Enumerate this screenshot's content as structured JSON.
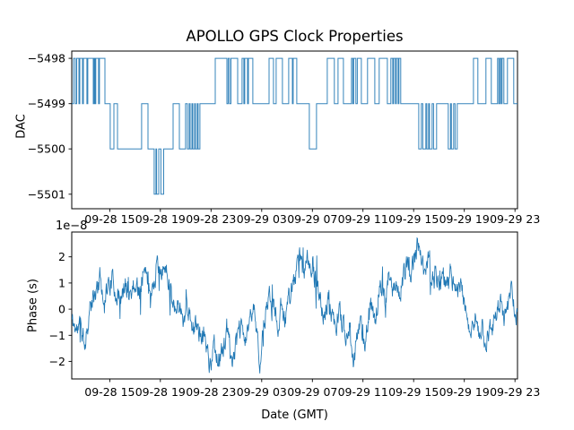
{
  "figure": {
    "background_color": "#ffffff",
    "line_color": "#1f77b4",
    "text_color": "#000000"
  },
  "chart_data": [
    {
      "type": "line",
      "subplot": "top",
      "title": "APOLLO GPS Clock Properties",
      "ylabel": "DAC",
      "drawstyle": "steps-post",
      "grid": false,
      "legend": "none",
      "yticks": {
        "values": [
          -5498,
          -5499,
          -5500,
          -5501
        ],
        "labels": [
          "−5498",
          "−5499",
          "−5500",
          "−5501"
        ]
      },
      "ylim": [
        -5501.32,
        -5497.84
      ],
      "xlim_hours": [
        0,
        35.2
      ],
      "xticks": {
        "hours": [
          3,
          7,
          11,
          15,
          19,
          23,
          27,
          31,
          35
        ],
        "labels": [
          "09-28 15",
          "09-28 19",
          "09-28 23",
          "09-29 03",
          "09-29 07",
          "09-29 11",
          "09-29 15",
          "09-29 19",
          "09-29 23"
        ]
      },
      "steps": [
        [
          0,
          -5499
        ],
        [
          0.14,
          -5498
        ],
        [
          0.28,
          -5499
        ],
        [
          0.39,
          -5498
        ],
        [
          0.57,
          -5499
        ],
        [
          0.64,
          -5498
        ],
        [
          0.85,
          -5499
        ],
        [
          0.92,
          -5498
        ],
        [
          1.2,
          -5499
        ],
        [
          1.27,
          -5498
        ],
        [
          1.7,
          -5499
        ],
        [
          1.77,
          -5498
        ],
        [
          1.84,
          -5499
        ],
        [
          1.9,
          -5498
        ],
        [
          2.12,
          -5499
        ],
        [
          2.19,
          -5498
        ],
        [
          2.62,
          -5499
        ],
        [
          3.04,
          -5500
        ],
        [
          3.33,
          -5499
        ],
        [
          3.61,
          -5500
        ],
        [
          5.52,
          -5499
        ],
        [
          6.02,
          -5500
        ],
        [
          6.51,
          -5501
        ],
        [
          6.65,
          -5500
        ],
        [
          6.7,
          -5501
        ],
        [
          6.87,
          -5500
        ],
        [
          7.04,
          -5501
        ],
        [
          7.26,
          -5500
        ],
        [
          8.0,
          -5499
        ],
        [
          8.5,
          -5500
        ],
        [
          8.99,
          -5499
        ],
        [
          9.13,
          -5500
        ],
        [
          9.27,
          -5499
        ],
        [
          9.35,
          -5500
        ],
        [
          9.49,
          -5499
        ],
        [
          9.56,
          -5500
        ],
        [
          9.7,
          -5499
        ],
        [
          9.77,
          -5500
        ],
        [
          9.91,
          -5499
        ],
        [
          9.98,
          -5500
        ],
        [
          10.12,
          -5499
        ],
        [
          11.33,
          -5498
        ],
        [
          12.25,
          -5499
        ],
        [
          12.35,
          -5498
        ],
        [
          12.46,
          -5499
        ],
        [
          12.57,
          -5498
        ],
        [
          13.1,
          -5499
        ],
        [
          13.45,
          -5498
        ],
        [
          13.59,
          -5499
        ],
        [
          13.66,
          -5498
        ],
        [
          13.88,
          -5499
        ],
        [
          13.95,
          -5498
        ],
        [
          14.3,
          -5499
        ],
        [
          15.58,
          -5498
        ],
        [
          15.93,
          -5499
        ],
        [
          16.14,
          -5498
        ],
        [
          16.64,
          -5499
        ],
        [
          17.13,
          -5498
        ],
        [
          17.42,
          -5499
        ],
        [
          17.49,
          -5498
        ],
        [
          17.77,
          -5499
        ],
        [
          18.76,
          -5500
        ],
        [
          19.33,
          -5499
        ],
        [
          20.18,
          -5498
        ],
        [
          20.74,
          -5499
        ],
        [
          21.03,
          -5498
        ],
        [
          21.45,
          -5499
        ],
        [
          22.09,
          -5498
        ],
        [
          22.19,
          -5499
        ],
        [
          22.27,
          -5498
        ],
        [
          22.44,
          -5499
        ],
        [
          22.55,
          -5498
        ],
        [
          22.87,
          -5499
        ],
        [
          23.36,
          -5498
        ],
        [
          23.93,
          -5499
        ],
        [
          24.28,
          -5498
        ],
        [
          24.92,
          -5499
        ],
        [
          25.2,
          -5498
        ],
        [
          25.35,
          -5499
        ],
        [
          25.42,
          -5498
        ],
        [
          25.56,
          -5499
        ],
        [
          25.63,
          -5498
        ],
        [
          25.77,
          -5499
        ],
        [
          25.84,
          -5498
        ],
        [
          25.98,
          -5499
        ],
        [
          27.4,
          -5500
        ],
        [
          27.61,
          -5499
        ],
        [
          27.72,
          -5500
        ],
        [
          27.96,
          -5499
        ],
        [
          28.04,
          -5500
        ],
        [
          28.18,
          -5499
        ],
        [
          28.25,
          -5500
        ],
        [
          28.46,
          -5499
        ],
        [
          28.57,
          -5500
        ],
        [
          28.81,
          -5499
        ],
        [
          29.73,
          -5500
        ],
        [
          29.91,
          -5499
        ],
        [
          29.98,
          -5500
        ],
        [
          30.16,
          -5499
        ],
        [
          30.27,
          -5500
        ],
        [
          30.44,
          -5499
        ],
        [
          31.72,
          -5498
        ],
        [
          32.07,
          -5499
        ],
        [
          32.71,
          -5498
        ],
        [
          33.13,
          -5499
        ],
        [
          33.63,
          -5498
        ],
        [
          33.73,
          -5499
        ],
        [
          33.81,
          -5498
        ],
        [
          33.91,
          -5499
        ],
        [
          33.98,
          -5498
        ],
        [
          34.12,
          -5499
        ],
        [
          34.41,
          -5498
        ],
        [
          34.9,
          -5499
        ]
      ]
    },
    {
      "type": "line",
      "subplot": "bottom",
      "ylabel": "Phase (s)",
      "xlabel": "Date (GMT)",
      "offset_text": "1e−8",
      "value_scale": "1e-8",
      "grid": false,
      "legend": "none",
      "yticks": {
        "values": [
          2,
          1,
          0,
          -1,
          -2
        ],
        "labels": [
          "2",
          "1",
          "0",
          "−1",
          "−2"
        ]
      },
      "ylim": [
        -2.67,
        2.95
      ],
      "xlim_hours": [
        0,
        35.2
      ],
      "xticks": {
        "hours": [
          3,
          7,
          11,
          15,
          19,
          23,
          27,
          31,
          35
        ],
        "labels": [
          "09-28 15",
          "09-28 19",
          "09-28 23",
          "09-29 03",
          "09-29 07",
          "09-29 11",
          "09-29 15",
          "09-29 19",
          "09-29 23"
        ]
      },
      "wander_anchors": [
        [
          0,
          -0.4
        ],
        [
          0.35,
          -0.8
        ],
        [
          0.7,
          -0.6
        ],
        [
          1.06,
          -1.3
        ],
        [
          1.42,
          0.0
        ],
        [
          1.77,
          0.4
        ],
        [
          2.12,
          0.9
        ],
        [
          2.27,
          1.3
        ],
        [
          2.48,
          0.4
        ],
        [
          2.83,
          0.9
        ],
        [
          3.19,
          1.1
        ],
        [
          3.54,
          0.6
        ],
        [
          3.89,
          0.3
        ],
        [
          4.25,
          0.9
        ],
        [
          4.6,
          0.6
        ],
        [
          4.96,
          1.0
        ],
        [
          5.31,
          0.7
        ],
        [
          5.66,
          1.5
        ],
        [
          6.02,
          1.0
        ],
        [
          6.37,
          0.7
        ],
        [
          6.73,
          1.7
        ],
        [
          7.08,
          1.1
        ],
        [
          7.43,
          1.8
        ],
        [
          7.65,
          1.0
        ],
        [
          7.93,
          0.5
        ],
        [
          8.21,
          0.0
        ],
        [
          8.5,
          0.3
        ],
        [
          8.78,
          -0.5
        ],
        [
          9.06,
          0.2
        ],
        [
          9.35,
          -0.3
        ],
        [
          9.63,
          -0.8
        ],
        [
          9.91,
          -0.5
        ],
        [
          10.19,
          -1.3
        ],
        [
          10.48,
          -0.9
        ],
        [
          10.76,
          -1.6
        ],
        [
          10.97,
          -2.4
        ],
        [
          11.19,
          -1.1
        ],
        [
          11.47,
          -1.7
        ],
        [
          11.75,
          -1.9
        ],
        [
          12.04,
          -1.3
        ],
        [
          12.32,
          -0.7
        ],
        [
          12.6,
          -2.0
        ],
        [
          12.88,
          -1.5
        ],
        [
          13.17,
          -1.0
        ],
        [
          13.45,
          -0.7
        ],
        [
          13.73,
          -1.3
        ],
        [
          14.02,
          -0.4
        ],
        [
          14.3,
          0.1
        ],
        [
          14.58,
          -0.6
        ],
        [
          14.87,
          -2.0
        ],
        [
          15.15,
          -0.9
        ],
        [
          15.43,
          0.2
        ],
        [
          15.72,
          0.6
        ],
        [
          16.0,
          0.1
        ],
        [
          16.28,
          -0.8
        ],
        [
          16.57,
          0.3
        ],
        [
          16.85,
          -0.3
        ],
        [
          17.13,
          0.4
        ],
        [
          17.42,
          0.9
        ],
        [
          17.7,
          1.3
        ],
        [
          17.98,
          1.9
        ],
        [
          18.27,
          1.5
        ],
        [
          18.55,
          2.1
        ],
        [
          18.83,
          1.6
        ],
        [
          19.12,
          1.3
        ],
        [
          19.4,
          0.8
        ],
        [
          19.68,
          0.2
        ],
        [
          19.96,
          -0.4
        ],
        [
          20.25,
          0.3
        ],
        [
          20.53,
          -0.2
        ],
        [
          20.81,
          -0.8
        ],
        [
          21.1,
          -0.1
        ],
        [
          21.38,
          -0.5
        ],
        [
          21.66,
          -1.1
        ],
        [
          21.95,
          -0.4
        ],
        [
          22.23,
          -2.3
        ],
        [
          22.51,
          -1.0
        ],
        [
          22.8,
          -0.3
        ],
        [
          23.08,
          -1.4
        ],
        [
          23.36,
          -0.6
        ],
        [
          23.65,
          0.1
        ],
        [
          23.93,
          -0.5
        ],
        [
          24.21,
          0.4
        ],
        [
          24.5,
          1.0
        ],
        [
          24.78,
          0.3
        ],
        [
          25.06,
          1.4
        ],
        [
          25.35,
          0.6
        ],
        [
          25.63,
          1.1
        ],
        [
          25.91,
          0.5
        ],
        [
          26.19,
          1.2
        ],
        [
          26.48,
          1.7
        ],
        [
          26.76,
          1.3
        ],
        [
          27.04,
          2.0
        ],
        [
          27.33,
          2.6
        ],
        [
          27.61,
          1.8
        ],
        [
          27.89,
          1.4
        ],
        [
          28.18,
          1.9
        ],
        [
          28.46,
          1.2
        ],
        [
          28.74,
          1.6
        ],
        [
          29.03,
          0.9
        ],
        [
          29.31,
          1.3
        ],
        [
          29.59,
          0.8
        ],
        [
          29.88,
          1.5
        ],
        [
          30.16,
          0.9
        ],
        [
          30.44,
          0.4
        ],
        [
          30.73,
          1.0
        ],
        [
          31.01,
          0.2
        ],
        [
          31.29,
          -0.4
        ],
        [
          31.57,
          -0.9
        ],
        [
          31.86,
          -0.3
        ],
        [
          32.14,
          -1.1
        ],
        [
          32.42,
          -0.6
        ],
        [
          32.71,
          -1.4
        ],
        [
          32.99,
          -0.8
        ],
        [
          33.27,
          -0.5
        ],
        [
          33.56,
          -0.1
        ],
        [
          33.84,
          0.3
        ],
        [
          34.12,
          -0.4
        ],
        [
          34.41,
          0.2
        ],
        [
          34.69,
          0.6
        ],
        [
          34.97,
          0.0
        ],
        [
          35.2,
          -0.2
        ]
      ],
      "noise": {
        "seed": 11,
        "amplitude": 0.34,
        "ar": 0.5,
        "spike_chance": 0.05,
        "spike_amplitude": 0.9
      }
    }
  ]
}
